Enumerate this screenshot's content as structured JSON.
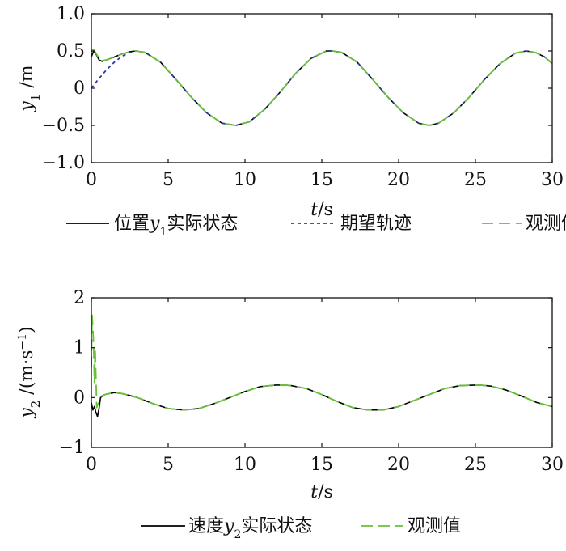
{
  "colors": {
    "actual": "#000000",
    "desired": "#2b3a9e",
    "observed": "#6abf3c",
    "axis": "#111111"
  },
  "chart_data": [
    {
      "type": "line",
      "ylabel_main": "y",
      "ylabel_sub": "1",
      "ylabel_unit": " /m",
      "xlabel_italic": "t",
      "xlabel_rest": "/s",
      "xlim": [
        0,
        30
      ],
      "ylim": [
        -1.0,
        1.0
      ],
      "xticks": [
        0,
        5,
        10,
        15,
        20,
        25,
        30
      ],
      "xtick_labels": [
        "0",
        "5",
        "10",
        "15",
        "20",
        "25",
        "30"
      ],
      "yticks": [
        -1.0,
        -0.5,
        0,
        0.5,
        1.0
      ],
      "ytick_labels": [
        "−1.0",
        "−0.5",
        "0",
        "0.5",
        "1.0"
      ],
      "grid": false,
      "legend": [
        {
          "pre": "位置",
          "var": "y",
          "sub": "1",
          "post": "实际状态",
          "style": "solid",
          "color_key": "actual"
        },
        {
          "pre": "期望轨迹",
          "var": "",
          "sub": "",
          "post": "",
          "style": "dotted",
          "color_key": "desired"
        },
        {
          "pre": "观测值",
          "var": "",
          "sub": "",
          "post": "",
          "style": "dashed",
          "color_key": "observed"
        }
      ],
      "series": [
        {
          "name": "位置y1实际状态",
          "color_key": "actual",
          "style": "solid",
          "x": [
            0,
            0.15,
            0.3,
            0.5,
            0.7,
            1.0,
            1.5,
            2.0,
            2.5,
            2.9,
            3.5,
            4.5,
            5.5,
            6.5,
            7.5,
            8.5,
            9.4,
            10.3,
            11.3,
            12.3,
            13.3,
            14.3,
            15.3,
            15.7,
            16.3,
            17.3,
            18.3,
            19.3,
            20.3,
            21.3,
            22.0,
            22.6,
            23.6,
            24.6,
            25.6,
            26.6,
            27.6,
            28.3,
            28.9,
            29.5,
            30
          ],
          "y": [
            0.42,
            0.5,
            0.46,
            0.38,
            0.36,
            0.38,
            0.42,
            0.46,
            0.49,
            0.5,
            0.48,
            0.35,
            0.12,
            -0.12,
            -0.33,
            -0.47,
            -0.5,
            -0.45,
            -0.28,
            -0.05,
            0.2,
            0.4,
            0.5,
            0.5,
            0.48,
            0.35,
            0.12,
            -0.12,
            -0.33,
            -0.47,
            -0.5,
            -0.47,
            -0.33,
            -0.12,
            0.12,
            0.33,
            0.47,
            0.5,
            0.48,
            0.42,
            0.33
          ]
        },
        {
          "name": "期望轨迹",
          "color_key": "desired",
          "style": "dotted",
          "x": [
            0,
            0.5,
            1.0,
            1.5,
            2.0,
            2.5,
            2.9,
            3.5,
            4.5,
            5.5,
            6.5,
            7.5,
            8.5,
            9.4,
            10.3,
            11.3,
            12.3,
            13.3,
            14.3,
            15.3,
            15.7,
            16.3,
            17.3,
            18.3,
            19.3,
            20.3,
            21.3,
            22.0,
            22.6,
            23.6,
            24.6,
            25.6,
            26.6,
            27.6,
            28.3,
            28.9,
            29.5,
            30
          ],
          "y": [
            0,
            0.13,
            0.25,
            0.35,
            0.43,
            0.48,
            0.5,
            0.48,
            0.35,
            0.12,
            -0.12,
            -0.33,
            -0.47,
            -0.5,
            -0.45,
            -0.28,
            -0.05,
            0.2,
            0.4,
            0.5,
            0.5,
            0.48,
            0.35,
            0.12,
            -0.12,
            -0.33,
            -0.47,
            -0.5,
            -0.47,
            -0.33,
            -0.12,
            0.12,
            0.33,
            0.47,
            0.5,
            0.48,
            0.42,
            0.33
          ]
        },
        {
          "name": "观测值",
          "color_key": "observed",
          "style": "dashed",
          "x": [
            0,
            0.15,
            0.3,
            0.5,
            0.7,
            1.0,
            1.5,
            2.0,
            2.5,
            2.9,
            3.5,
            4.5,
            5.5,
            6.5,
            7.5,
            8.5,
            9.4,
            10.3,
            11.3,
            12.3,
            13.3,
            14.3,
            15.3,
            15.7,
            16.3,
            17.3,
            18.3,
            19.3,
            20.3,
            21.3,
            22.0,
            22.6,
            23.6,
            24.6,
            25.6,
            26.6,
            27.6,
            28.3,
            28.9,
            29.5,
            30
          ],
          "y": [
            0.5,
            0.52,
            0.47,
            0.4,
            0.37,
            0.38,
            0.42,
            0.46,
            0.49,
            0.5,
            0.48,
            0.35,
            0.12,
            -0.12,
            -0.33,
            -0.47,
            -0.5,
            -0.45,
            -0.28,
            -0.05,
            0.2,
            0.4,
            0.5,
            0.5,
            0.48,
            0.35,
            0.12,
            -0.12,
            -0.33,
            -0.47,
            -0.5,
            -0.47,
            -0.33,
            -0.12,
            0.12,
            0.33,
            0.47,
            0.5,
            0.48,
            0.42,
            0.33
          ]
        }
      ]
    },
    {
      "type": "line",
      "ylabel_main": "y",
      "ylabel_sub": "2",
      "ylabel_unit": " /(m·s",
      "ylabel_sup": "−1",
      "ylabel_close": ")",
      "xlabel_italic": "t",
      "xlabel_rest": "/s",
      "xlim": [
        0,
        30
      ],
      "ylim": [
        -1,
        2
      ],
      "xticks": [
        0,
        5,
        10,
        15,
        20,
        25,
        30
      ],
      "xtick_labels": [
        "0",
        "5",
        "10",
        "15",
        "20",
        "25",
        "30"
      ],
      "yticks": [
        -1,
        0,
        1,
        2
      ],
      "ytick_labels": [
        "−1",
        "0",
        "1",
        "2"
      ],
      "grid": false,
      "legend": [
        {
          "pre": "速度",
          "var": "y",
          "sub": "2",
          "post": "实际状态",
          "style": "solid",
          "color_key": "actual"
        },
        {
          "pre": "观测值",
          "var": "",
          "sub": "",
          "post": "",
          "style": "dashed",
          "color_key": "observed"
        }
      ],
      "series": [
        {
          "name": "速度y2实际状态",
          "color_key": "actual",
          "style": "solid",
          "x": [
            0,
            0.1,
            0.2,
            0.3,
            0.4,
            0.5,
            0.6,
            0.8,
            1.0,
            1.5,
            2.0,
            3.0,
            4.0,
            5.0,
            6.0,
            7.0,
            8.0,
            9.0,
            10.0,
            11.0,
            12.0,
            12.6,
            13.0,
            14.0,
            15.0,
            16.0,
            17.0,
            18.0,
            19.0,
            20.0,
            21.0,
            22.0,
            23.0,
            24.0,
            25.0,
            25.3,
            26.0,
            27.0,
            28.0,
            29.0,
            30
          ],
          "y": [
            -0.1,
            -0.25,
            -0.18,
            -0.3,
            -0.38,
            -0.22,
            0.0,
            0.05,
            0.07,
            0.1,
            0.08,
            0.0,
            -0.12,
            -0.22,
            -0.25,
            -0.22,
            -0.12,
            0.0,
            0.12,
            0.22,
            0.25,
            0.25,
            0.24,
            0.18,
            0.06,
            -0.08,
            -0.2,
            -0.25,
            -0.25,
            -0.18,
            -0.06,
            0.06,
            0.18,
            0.24,
            0.25,
            0.25,
            0.23,
            0.15,
            0.03,
            -0.1,
            -0.18
          ]
        },
        {
          "name": "观测值",
          "color_key": "observed",
          "style": "dashed",
          "x": [
            0,
            0.05,
            0.1,
            0.15,
            0.2,
            0.25,
            0.3,
            0.35,
            0.4,
            0.5,
            0.6,
            0.8,
            1.0,
            1.5,
            2.0,
            3.0,
            4.0,
            5.0,
            6.0,
            7.0,
            8.0,
            9.0,
            10.0,
            11.0,
            12.0,
            12.6,
            13.0,
            14.0,
            15.0,
            16.0,
            17.0,
            18.0,
            19.0,
            20.0,
            21.0,
            22.0,
            23.0,
            24.0,
            25.0,
            25.3,
            26.0,
            27.0,
            28.0,
            29.0,
            30
          ],
          "y": [
            0.6,
            1.65,
            1.4,
            1.0,
            0.3,
            0.95,
            0.4,
            -0.2,
            -0.15,
            -0.1,
            0.02,
            0.05,
            0.07,
            0.1,
            0.08,
            0.0,
            -0.12,
            -0.22,
            -0.25,
            -0.22,
            -0.12,
            0.0,
            0.12,
            0.22,
            0.25,
            0.25,
            0.24,
            0.18,
            0.06,
            -0.08,
            -0.2,
            -0.25,
            -0.25,
            -0.18,
            -0.06,
            0.06,
            0.18,
            0.24,
            0.25,
            0.25,
            0.23,
            0.15,
            0.03,
            -0.1,
            -0.18
          ]
        }
      ]
    }
  ]
}
